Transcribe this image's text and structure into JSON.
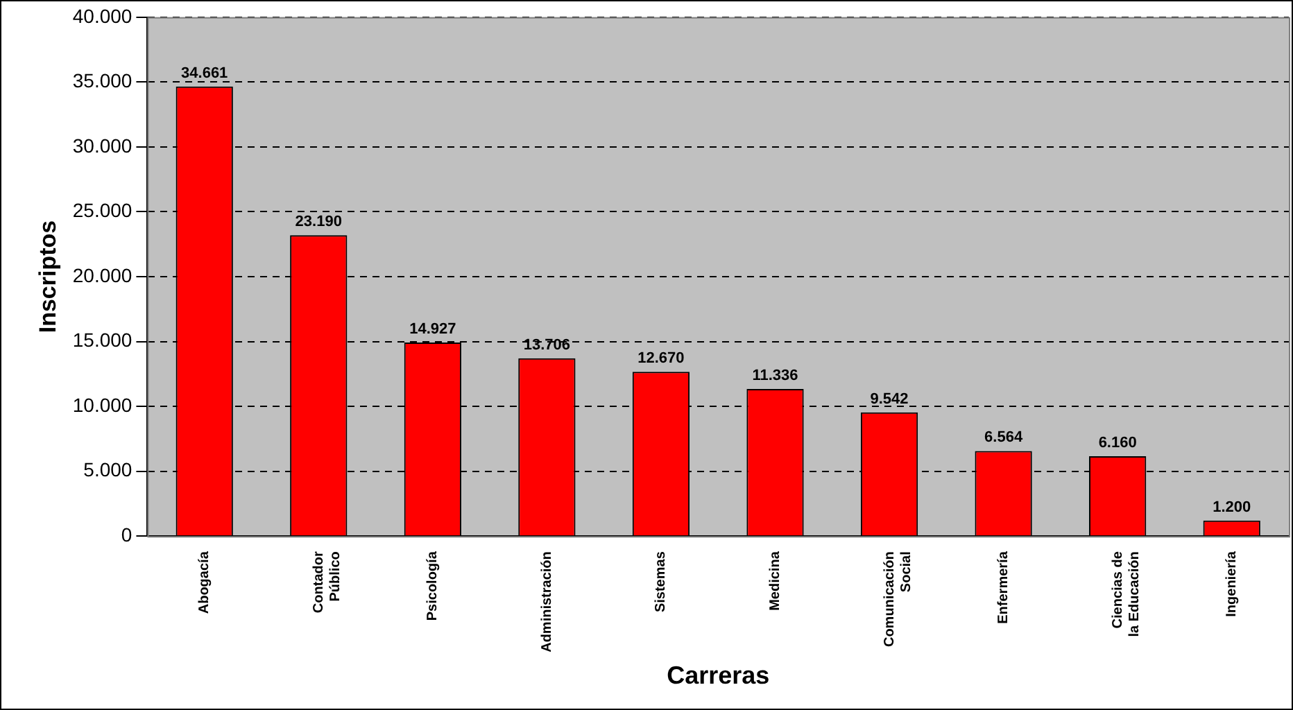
{
  "chart_data": {
    "type": "bar",
    "xlabel": "Carreras",
    "ylabel": "Inscriptos",
    "categories": [
      "Abogacía",
      "Contador Público",
      "Psicología",
      "Administración",
      "Sistemas",
      "Medicina",
      "Comunicación Social",
      "Enfermería",
      "Ciencias de la Educación",
      "Ingeniería"
    ],
    "values": [
      34661,
      23190,
      14927,
      13706,
      12670,
      11336,
      9542,
      6564,
      6160,
      1200
    ],
    "value_labels": [
      "34.661",
      "23.190",
      "14.927",
      "13.706",
      "12.670",
      "11.336",
      "9.542",
      "6.564",
      "6.160",
      "1.200"
    ],
    "color": "#ff0000",
    "ylim": [
      0,
      40000
    ],
    "yticks": [
      0,
      {
        "value": 5000,
        "label": "5.000"
      },
      {
        "value": 10000,
        "label": "10.000"
      },
      {
        "value": 15000,
        "label": "15.000"
      },
      {
        "value": 20000,
        "label": "20.000"
      },
      {
        "value": 25000,
        "label": "25.000"
      },
      {
        "value": 30000,
        "label": "30.000"
      },
      {
        "value": 35000,
        "label": "35.000"
      },
      {
        "value": 40000,
        "label": "40.000"
      }
    ],
    "grid": "y",
    "line_style": "dashed",
    "legend": false
  }
}
